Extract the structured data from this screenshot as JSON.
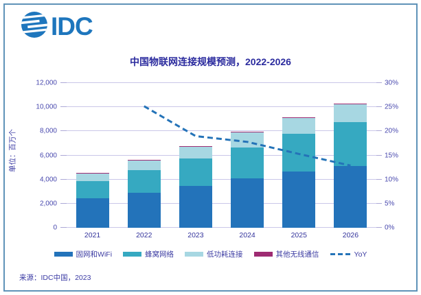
{
  "logo": {
    "text": "IDC",
    "color": "#1e76bd",
    "icon": "globe"
  },
  "title": "中国物联网连接规模预测，2022-2026",
  "source": "来源：IDC中国，2023",
  "colors": {
    "frame_border": "#5e92b8",
    "gridline": "#c9c6e8",
    "axis_text": "#4747ad",
    "title_text": "#2b2b9e"
  },
  "chart_data": {
    "type": "bar",
    "subtype": "stacked-bars-with-line",
    "title": "中国物联网连接规模预测，2022-2026",
    "categories": [
      "2021",
      "2022",
      "2023",
      "2024",
      "2025",
      "2026"
    ],
    "series": [
      {
        "name": "固网和WiFi",
        "color": "#2373ba",
        "values": [
          2450,
          2900,
          3490,
          4070,
          4680,
          5110
        ]
      },
      {
        "name": "蜂窝网络",
        "color": "#36a9c1",
        "values": [
          1430,
          1890,
          2230,
          2610,
          3140,
          3640
        ]
      },
      {
        "name": "低功耗连接",
        "color": "#a7d7e2",
        "values": [
          610,
          795,
          1010,
          1215,
          1270,
          1475
        ]
      },
      {
        "name": "其他无线通信",
        "color": "#9e2b72",
        "values": [
          25,
          25,
          30,
          35,
          40,
          45
        ]
      }
    ],
    "line_series": {
      "name": "YoY",
      "color": "#2473b8",
      "style": "dashed",
      "axis": "right",
      "values": [
        null,
        25.2,
        19.0,
        17.8,
        15.3,
        12.9
      ]
    },
    "left_axis": {
      "label": "单位：百万个",
      "min": 0,
      "max": 12000,
      "ticks": [
        "0",
        "2,000",
        "4,000",
        "6,000",
        "8,000",
        "10,000",
        "12,000"
      ]
    },
    "right_axis": {
      "min": 0,
      "max": 30,
      "ticks": [
        "0%",
        "5%",
        "10%",
        "15%",
        "20%",
        "25%",
        "30%"
      ]
    },
    "grid": true,
    "legend_position": "bottom",
    "legend": [
      {
        "label": "固网和WiFi",
        "color": "#2373ba",
        "type": "bar"
      },
      {
        "label": "蜂窝网络",
        "color": "#36a9c1",
        "type": "bar"
      },
      {
        "label": "低功耗连接",
        "color": "#a7d7e2",
        "type": "bar"
      },
      {
        "label": "其他无线通信",
        "color": "#9e2b72",
        "type": "bar"
      },
      {
        "label": "YoY",
        "color": "#2473b8",
        "type": "dashed-line"
      }
    ]
  }
}
